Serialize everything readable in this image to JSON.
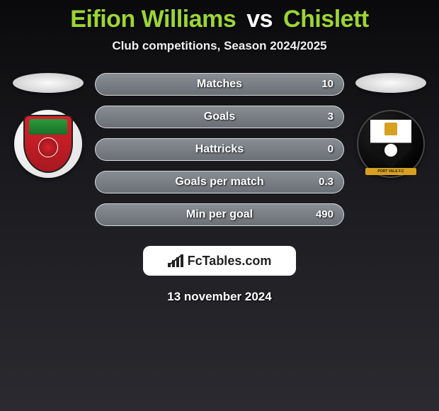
{
  "title": {
    "player_a": "Eifion Williams",
    "vs": "vs",
    "player_b": "Chislett"
  },
  "subtitle": "Club competitions, Season 2024/2025",
  "stats": [
    {
      "label": "Matches",
      "value": "10",
      "fill_pct": 0
    },
    {
      "label": "Goals",
      "value": "3",
      "fill_pct": 0
    },
    {
      "label": "Hattricks",
      "value": "0",
      "fill_pct": 0
    },
    {
      "label": "Goals per match",
      "value": "0.3",
      "fill_pct": 0
    },
    {
      "label": "Min per goal",
      "value": "490",
      "fill_pct": 0
    }
  ],
  "branding": "FcTables.com",
  "date": "13 november 2024",
  "teams": {
    "left_crest_ribbon": "",
    "right_crest_ribbon": "PORT VALE F.C"
  },
  "colors": {
    "accent": "#9bd633",
    "stat_bar_bg_top": "#888e94",
    "stat_bar_bg_bottom": "#6a7076",
    "stat_fill_top": "#b3b3b3",
    "stat_fill_bottom": "#949494",
    "background_top": "#0a0a0c",
    "background_bottom": "#2a2a30"
  }
}
